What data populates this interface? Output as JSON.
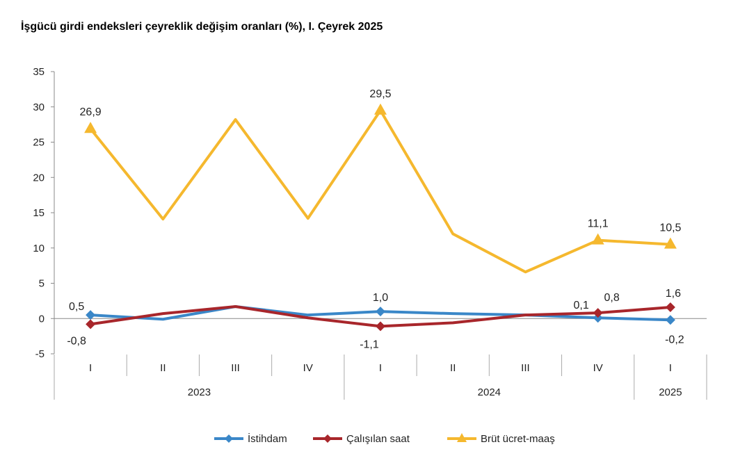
{
  "chart_data": {
    "type": "line",
    "title": "İşgücü girdi endeksleri çeyreklik değişim oranları (%), I. Çeyrek 2025",
    "categories": [
      "I",
      "II",
      "III",
      "IV",
      "I",
      "II",
      "III",
      "IV",
      "I"
    ],
    "year_groups": [
      {
        "label": "2023",
        "count": 4
      },
      {
        "label": "2024",
        "count": 4
      },
      {
        "label": "2025",
        "count": 1
      }
    ],
    "ylim": [
      -5,
      35
    ],
    "yticks": [
      -5,
      0,
      5,
      10,
      15,
      20,
      25,
      30,
      35
    ],
    "grid": false,
    "legend_position": "bottom",
    "series": [
      {
        "name": "İstihdam",
        "color": "#3A87C8",
        "marker": "diamond",
        "values": [
          0.5,
          -0.1,
          1.7,
          0.5,
          1.0,
          0.7,
          0.5,
          0.1,
          -0.2
        ],
        "labels": [
          "0,5",
          "",
          "",
          "",
          "1,0",
          "",
          "",
          "0,1",
          "-0,2"
        ]
      },
      {
        "name": "Çalışılan saat",
        "color": "#A8262B",
        "marker": "diamond",
        "values": [
          -0.8,
          0.7,
          1.7,
          0.1,
          -1.1,
          -0.6,
          0.5,
          0.8,
          1.6
        ],
        "labels": [
          "-0,8",
          "",
          "",
          "",
          "-1,1",
          "",
          "",
          "0,8",
          "1,6"
        ]
      },
      {
        "name": "Brüt ücret-maaş",
        "color": "#F5B82E",
        "marker": "triangle",
        "values": [
          26.9,
          14.1,
          28.2,
          14.2,
          29.5,
          12.0,
          6.6,
          11.1,
          10.5
        ],
        "labels": [
          "26,9",
          "",
          "",
          "",
          "29,5",
          "",
          "",
          "11,1",
          "10,5"
        ]
      }
    ]
  }
}
